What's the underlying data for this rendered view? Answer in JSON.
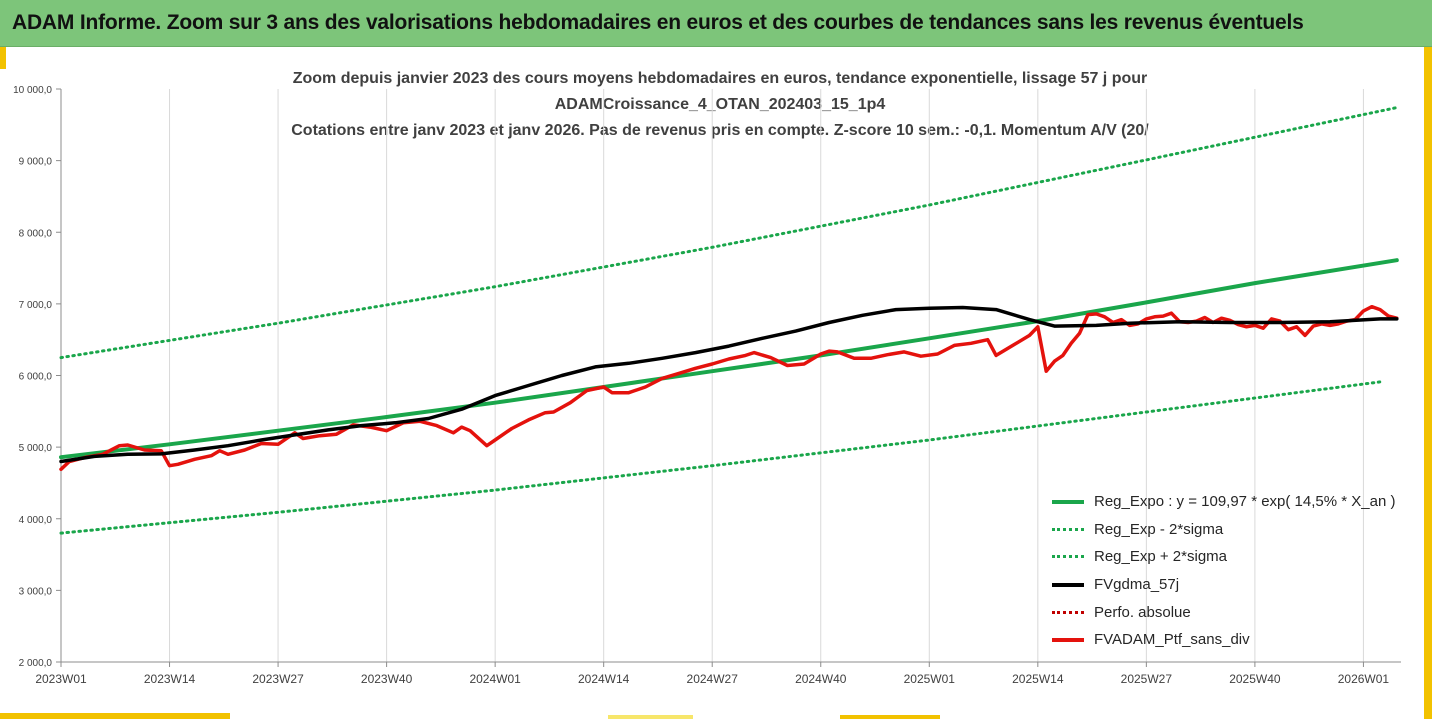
{
  "banner": {
    "title": "ADAM Informe. Zoom sur 3 ans des valorisations hebdomadaires en euros et des courbes de tendances sans les revenus éventuels"
  },
  "chart_data": {
    "type": "line",
    "title_lines": [
      "Zoom depuis janvier 2023 des cours moyens hebdomadaires  en euros, tendance exponentielle, lissage 57 j pour",
      "ADAMCroissance_4_OTAN_202403_15_1p4",
      "Cotations entre janv 2023 et janv 2026. Pas de revenus pris en compte. Z-score 10 sem.: -0,1. Momentum A/V (20/"
    ],
    "xlabel": "",
    "ylabel": "",
    "x_ticks": [
      "2023W01",
      "2023W14",
      "2023W27",
      "2023W40",
      "2024W01",
      "2024W14",
      "2024W27",
      "2024W40",
      "2025W01",
      "2025W14",
      "2025W27",
      "2025W40",
      "2026W01"
    ],
    "x_range_weeks": [
      0,
      160.5
    ],
    "y_ticks": [
      "2 000,0",
      "3 000,0",
      "4 000,0",
      "5 000,0",
      "6 000,0",
      "7 000,0",
      "8 000,0",
      "9 000,0",
      "10 000,0"
    ],
    "ylim": [
      2000,
      10000
    ],
    "grid": "vertical",
    "legend_position": "bottom-right",
    "colors": {
      "trend": "#1aa64b",
      "bands": "#1aa64b",
      "smooth": "#000000",
      "perfo": "#c00000",
      "price": "#e4120d"
    },
    "legend": [
      {
        "label": "Reg_Expo : y = 109,97 * exp( 14,5% *  X_an )",
        "style": "solid",
        "color": "#1aa64b"
      },
      {
        "label": "Reg_Exp - 2*sigma",
        "style": "dotted",
        "color": "#1aa64b"
      },
      {
        "label": "Reg_Exp + 2*sigma",
        "style": "dotted",
        "color": "#1aa64b"
      },
      {
        "label": "FVgdma_57j",
        "style": "solid",
        "color": "#000000"
      },
      {
        "label": "Perfo. absolue",
        "style": "dotted",
        "color": "#c00000"
      },
      {
        "label": "FVADAM_Ptf_sans_div",
        "style": "solid",
        "color": "#e4120d"
      }
    ],
    "series": [
      {
        "name": "Reg_Expo",
        "style": "solid",
        "color": "#1aa64b",
        "points": [
          [
            0,
            4860
          ],
          [
            13,
            5040
          ],
          [
            26,
            5230
          ],
          [
            39,
            5420
          ],
          [
            52,
            5620
          ],
          [
            65,
            5840
          ],
          [
            78,
            6060
          ],
          [
            91,
            6280
          ],
          [
            104,
            6520
          ],
          [
            117,
            6760
          ],
          [
            130,
            7020
          ],
          [
            143,
            7290
          ],
          [
            160,
            7610
          ]
        ]
      },
      {
        "name": "Reg_Exp - 2*sigma",
        "style": "dotted",
        "color": "#1aa64b",
        "points": [
          [
            0,
            3800
          ],
          [
            26,
            4090
          ],
          [
            52,
            4400
          ],
          [
            78,
            4740
          ],
          [
            104,
            5100
          ],
          [
            130,
            5490
          ],
          [
            158,
            5910
          ]
        ]
      },
      {
        "name": "Reg_Exp + 2*sigma",
        "style": "dotted",
        "color": "#1aa64b",
        "points": [
          [
            0,
            6250
          ],
          [
            26,
            6730
          ],
          [
            52,
            7240
          ],
          [
            78,
            7790
          ],
          [
            104,
            8380
          ],
          [
            130,
            9010
          ],
          [
            160,
            9740
          ]
        ]
      },
      {
        "name": "FVgdma_57j",
        "style": "solid",
        "color": "#000000",
        "points": [
          [
            0,
            4800
          ],
          [
            4,
            4870
          ],
          [
            8,
            4900
          ],
          [
            12,
            4905
          ],
          [
            16,
            4960
          ],
          [
            20,
            5020
          ],
          [
            24,
            5100
          ],
          [
            28,
            5170
          ],
          [
            32,
            5240
          ],
          [
            36,
            5300
          ],
          [
            40,
            5340
          ],
          [
            44,
            5400
          ],
          [
            48,
            5530
          ],
          [
            52,
            5720
          ],
          [
            56,
            5860
          ],
          [
            60,
            6000
          ],
          [
            64,
            6120
          ],
          [
            68,
            6170
          ],
          [
            72,
            6240
          ],
          [
            76,
            6320
          ],
          [
            80,
            6410
          ],
          [
            84,
            6520
          ],
          [
            88,
            6620
          ],
          [
            92,
            6740
          ],
          [
            96,
            6840
          ],
          [
            100,
            6920
          ],
          [
            104,
            6940
          ],
          [
            108,
            6950
          ],
          [
            112,
            6920
          ],
          [
            116,
            6780
          ],
          [
            119,
            6690
          ],
          [
            124,
            6700
          ],
          [
            128,
            6730
          ],
          [
            134,
            6750
          ],
          [
            140,
            6740
          ],
          [
            146,
            6740
          ],
          [
            152,
            6750
          ],
          [
            158,
            6790
          ],
          [
            160,
            6790
          ]
        ]
      },
      {
        "name": "Perfo. absolue",
        "style": "dotted",
        "color": "#c00000",
        "points": []
      },
      {
        "name": "FVADAM_Ptf_sans_div",
        "style": "solid",
        "color": "#e4120d",
        "points": [
          [
            0,
            4690
          ],
          [
            1,
            4800
          ],
          [
            3,
            4860
          ],
          [
            5,
            4900
          ],
          [
            7,
            5020
          ],
          [
            8,
            5030
          ],
          [
            10,
            4960
          ],
          [
            12,
            4950
          ],
          [
            13,
            4740
          ],
          [
            14,
            4760
          ],
          [
            16,
            4830
          ],
          [
            18,
            4880
          ],
          [
            19,
            4950
          ],
          [
            20,
            4900
          ],
          [
            22,
            4960
          ],
          [
            24,
            5050
          ],
          [
            26,
            5040
          ],
          [
            28,
            5200
          ],
          [
            29,
            5120
          ],
          [
            31,
            5160
          ],
          [
            33,
            5180
          ],
          [
            35,
            5310
          ],
          [
            37,
            5280
          ],
          [
            39,
            5230
          ],
          [
            41,
            5340
          ],
          [
            43,
            5360
          ],
          [
            45,
            5300
          ],
          [
            47,
            5200
          ],
          [
            48,
            5280
          ],
          [
            49,
            5230
          ],
          [
            51,
            5020
          ],
          [
            52,
            5100
          ],
          [
            54,
            5260
          ],
          [
            56,
            5380
          ],
          [
            58,
            5480
          ],
          [
            59,
            5490
          ],
          [
            61,
            5620
          ],
          [
            63,
            5790
          ],
          [
            65,
            5840
          ],
          [
            66,
            5760
          ],
          [
            68,
            5760
          ],
          [
            70,
            5840
          ],
          [
            72,
            5960
          ],
          [
            74,
            6030
          ],
          [
            76,
            6100
          ],
          [
            78,
            6160
          ],
          [
            80,
            6230
          ],
          [
            82,
            6280
          ],
          [
            83,
            6320
          ],
          [
            85,
            6250
          ],
          [
            87,
            6140
          ],
          [
            89,
            6160
          ],
          [
            91,
            6300
          ],
          [
            92,
            6340
          ],
          [
            93,
            6330
          ],
          [
            95,
            6240
          ],
          [
            97,
            6240
          ],
          [
            99,
            6290
          ],
          [
            101,
            6330
          ],
          [
            103,
            6270
          ],
          [
            105,
            6300
          ],
          [
            107,
            6420
          ],
          [
            109,
            6450
          ],
          [
            111,
            6500
          ],
          [
            112,
            6280
          ],
          [
            114,
            6420
          ],
          [
            116,
            6560
          ],
          [
            118,
            6530
          ],
          [
            120,
            6620
          ],
          [
            122,
            6720
          ],
          [
            124,
            6750
          ],
          [
            126,
            6800
          ],
          [
            127,
            6940
          ],
          [
            129,
            6920
          ],
          [
            130,
            6920
          ],
          [
            132,
            7100
          ],
          [
            133,
            7060
          ],
          [
            135,
            7210
          ],
          [
            136,
            7230
          ],
          [
            138,
            7180
          ],
          [
            140,
            7010
          ],
          [
            141,
            6960
          ],
          [
            143,
            6960
          ],
          [
            145,
            7040
          ],
          [
            146,
            7230
          ],
          [
            148,
            7250
          ],
          [
            150,
            7280
          ],
          [
            152,
            7150
          ],
          [
            154,
            6860
          ],
          [
            156,
            6630
          ],
          [
            158,
            6700
          ],
          [
            158.4,
            6060
          ],
          [
            159,
            6200
          ],
          [
            160,
            6290
          ],
          [
            160.5,
            6440
          ]
        ]
      }
    ],
    "series_extension": [
      {
        "name": "FVADAM_Ptf_sans_div_2025",
        "note": "continuation of weekly price series",
        "points": [
          [
            117,
            6680
          ],
          [
            118,
            6060
          ],
          [
            119,
            6200
          ],
          [
            120,
            6280
          ],
          [
            121,
            6450
          ],
          [
            122,
            6590
          ],
          [
            123,
            6850
          ],
          [
            124,
            6860
          ],
          [
            125,
            6820
          ],
          [
            126,
            6740
          ],
          [
            127,
            6780
          ],
          [
            128,
            6700
          ],
          [
            129,
            6720
          ],
          [
            130,
            6790
          ],
          [
            131,
            6820
          ],
          [
            132,
            6830
          ],
          [
            133,
            6870
          ],
          [
            134,
            6750
          ],
          [
            135,
            6740
          ],
          [
            136,
            6760
          ],
          [
            137,
            6810
          ],
          [
            138,
            6740
          ],
          [
            139,
            6800
          ],
          [
            140,
            6770
          ],
          [
            141,
            6710
          ],
          [
            142,
            6680
          ],
          [
            143,
            6700
          ],
          [
            144,
            6660
          ],
          [
            145,
            6790
          ],
          [
            146,
            6760
          ],
          [
            147,
            6640
          ],
          [
            148,
            6680
          ],
          [
            149,
            6560
          ],
          [
            150,
            6690
          ],
          [
            151,
            6720
          ],
          [
            152,
            6700
          ],
          [
            153,
            6720
          ],
          [
            154,
            6760
          ],
          [
            155,
            6780
          ],
          [
            156,
            6900
          ],
          [
            157,
            6960
          ],
          [
            158,
            6920
          ],
          [
            159,
            6830
          ],
          [
            160,
            6800
          ]
        ]
      }
    ]
  }
}
